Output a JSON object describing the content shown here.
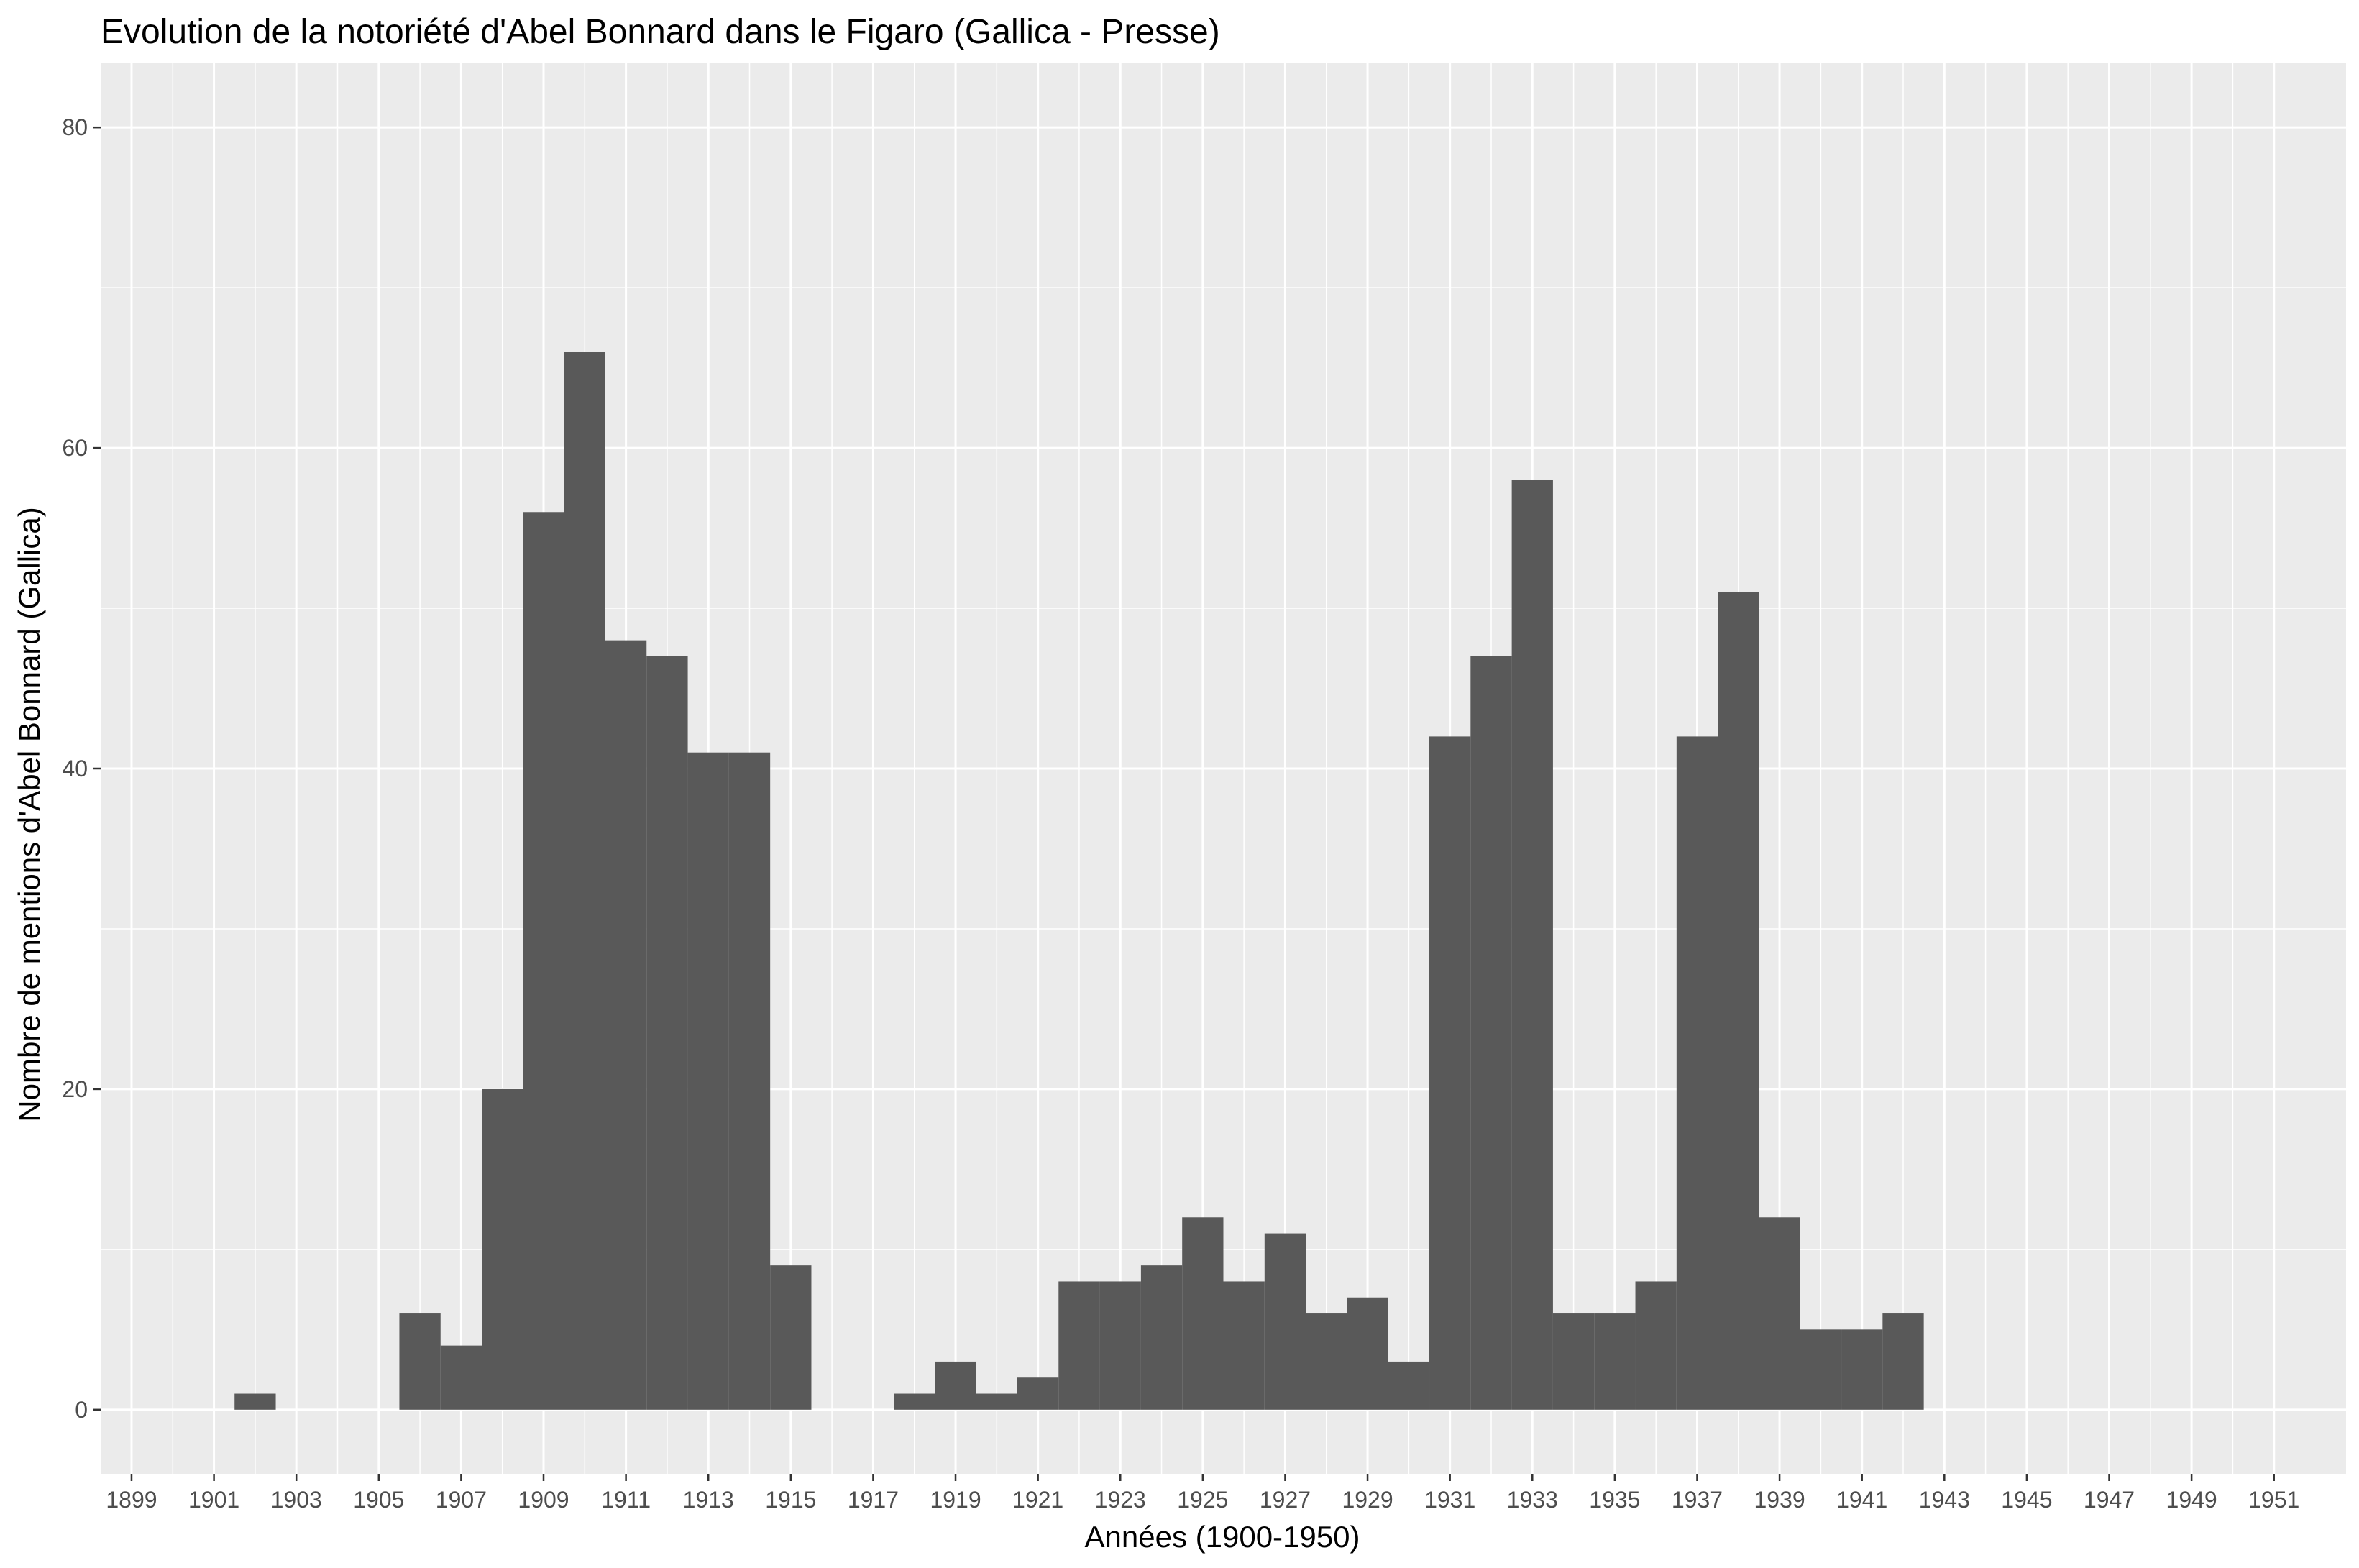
{
  "chart_data": {
    "type": "bar",
    "title": "Evolution de la notoriété d'Abel Bonnard dans le Figaro (Gallica - Presse)",
    "xlabel": "Années (1900-1950)",
    "ylabel": "Nombre de mentions d'Abel Bonnard (Gallica)",
    "xlim": [
      1898.25,
      1952.75
    ],
    "ylim": [
      -4,
      84
    ],
    "x_ticks": [
      1899,
      1901,
      1903,
      1905,
      1907,
      1909,
      1911,
      1913,
      1915,
      1917,
      1919,
      1921,
      1923,
      1925,
      1927,
      1929,
      1931,
      1933,
      1935,
      1937,
      1939,
      1941,
      1943,
      1945,
      1947,
      1949,
      1951
    ],
    "y_ticks": [
      0,
      20,
      40,
      60,
      80
    ],
    "grid": true,
    "bar_color": "#595959",
    "panel_background": "#ebebeb",
    "categories": [
      1902,
      1906,
      1907,
      1908,
      1909,
      1910,
      1911,
      1912,
      1913,
      1914,
      1915,
      1918,
      1919,
      1920,
      1921,
      1922,
      1923,
      1924,
      1925,
      1926,
      1927,
      1928,
      1929,
      1930,
      1931,
      1932,
      1933,
      1934,
      1935,
      1936,
      1937,
      1938,
      1939,
      1940,
      1941,
      1942
    ],
    "values": [
      1,
      6,
      4,
      20,
      56,
      66,
      48,
      47,
      41,
      41,
      9,
      1,
      3,
      1,
      2,
      8,
      8,
      9,
      12,
      8,
      11,
      6,
      7,
      3,
      42,
      47,
      58,
      6,
      6,
      8,
      42,
      51,
      12,
      5,
      5,
      6
    ]
  }
}
